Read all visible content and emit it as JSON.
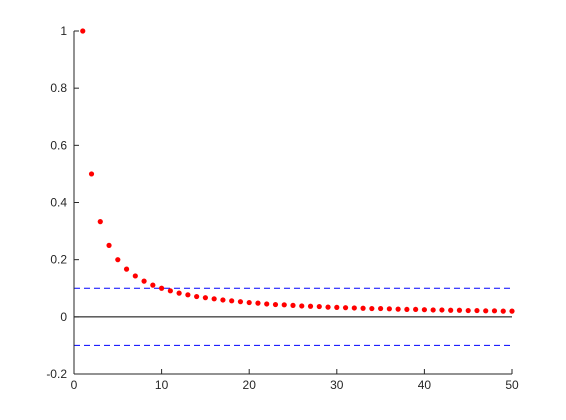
{
  "chart_data": {
    "type": "scatter",
    "title": "",
    "xlabel": "",
    "ylabel": "",
    "xlim": [
      0,
      50
    ],
    "ylim": [
      -0.2,
      1
    ],
    "xticks": [
      0,
      10,
      20,
      30,
      40,
      50
    ],
    "xtick_labels": [
      "0",
      "10",
      "20",
      "30",
      "40",
      "50"
    ],
    "yticks": [
      -0.2,
      0,
      0.2,
      0.4,
      0.6,
      0.8,
      1
    ],
    "ytick_labels": [
      "-0.2",
      "0",
      "0.2",
      "0.4",
      "0.6",
      "0.8",
      "1"
    ],
    "grid": false,
    "series": [
      {
        "color": "#ff0000",
        "marker": "dot",
        "x": [
          1,
          2,
          3,
          4,
          5,
          6,
          7,
          8,
          9,
          10,
          11,
          12,
          13,
          14,
          15,
          16,
          17,
          18,
          19,
          20,
          21,
          22,
          23,
          24,
          25,
          26,
          27,
          28,
          29,
          30,
          31,
          32,
          33,
          34,
          35,
          36,
          37,
          38,
          39,
          40,
          41,
          42,
          43,
          44,
          45,
          46,
          47,
          48,
          49,
          50
        ],
        "y": [
          1.0,
          0.5,
          0.333,
          0.25,
          0.2,
          0.167,
          0.143,
          0.125,
          0.111,
          0.1,
          0.091,
          0.083,
          0.077,
          0.071,
          0.067,
          0.063,
          0.059,
          0.056,
          0.053,
          0.05,
          0.048,
          0.045,
          0.043,
          0.042,
          0.04,
          0.038,
          0.037,
          0.036,
          0.034,
          0.033,
          0.032,
          0.031,
          0.03,
          0.029,
          0.029,
          0.028,
          0.027,
          0.026,
          0.026,
          0.025,
          0.024,
          0.024,
          0.023,
          0.023,
          0.022,
          0.022,
          0.021,
          0.021,
          0.02,
          0.02
        ]
      }
    ],
    "reference_lines": [
      {
        "y": 0.1,
        "color": "#0000ff",
        "style": "dashed"
      },
      {
        "y": -0.1,
        "color": "#0000ff",
        "style": "dashed"
      },
      {
        "y": 0,
        "color": "#000000",
        "style": "solid"
      }
    ]
  }
}
